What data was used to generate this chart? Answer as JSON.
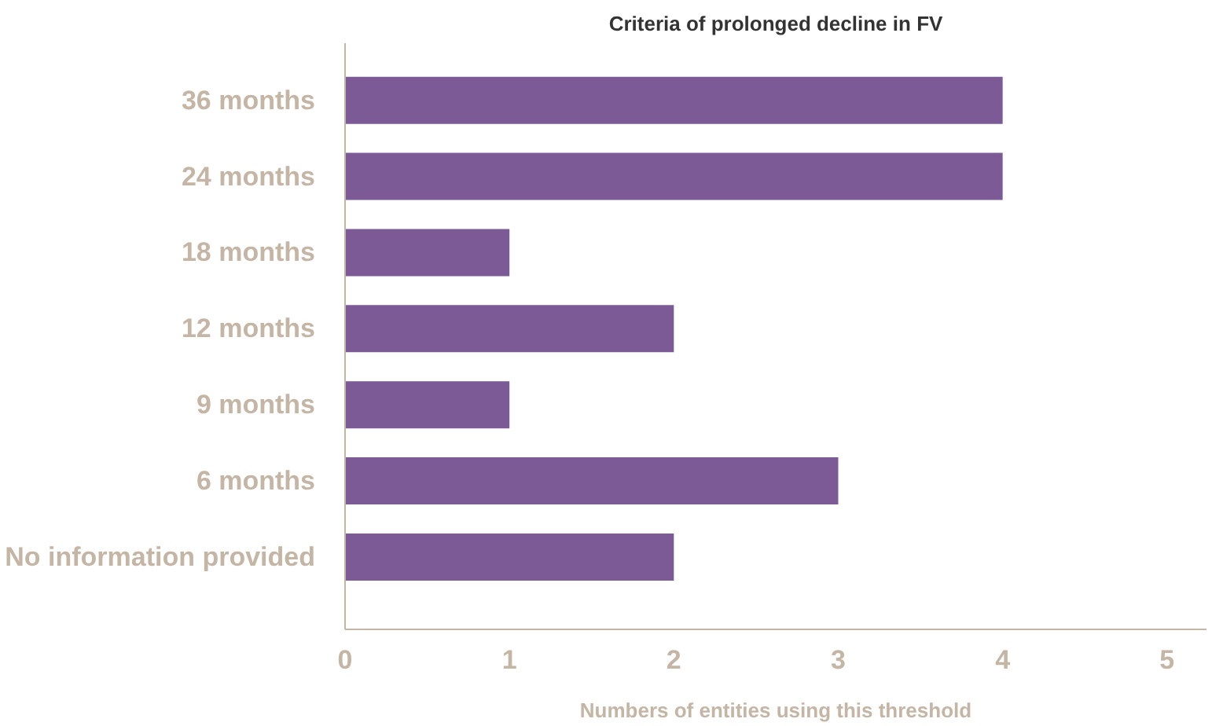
{
  "chart_data": {
    "type": "bar",
    "orientation": "horizontal",
    "title": "Criteria of prolonged decline in FV",
    "xlabel": "Numbers of entities using this threshold",
    "categories": [
      "36 months",
      "24 months",
      "18 months",
      "12 months",
      "9 months",
      "6 months",
      "No information provided"
    ],
    "values": [
      4,
      4,
      1,
      2,
      1,
      3,
      2
    ],
    "color": "#7b5a96",
    "xlim": [
      0,
      5.24
    ],
    "xticks": [
      0,
      1,
      2,
      3,
      4,
      5
    ],
    "grid": false
  }
}
